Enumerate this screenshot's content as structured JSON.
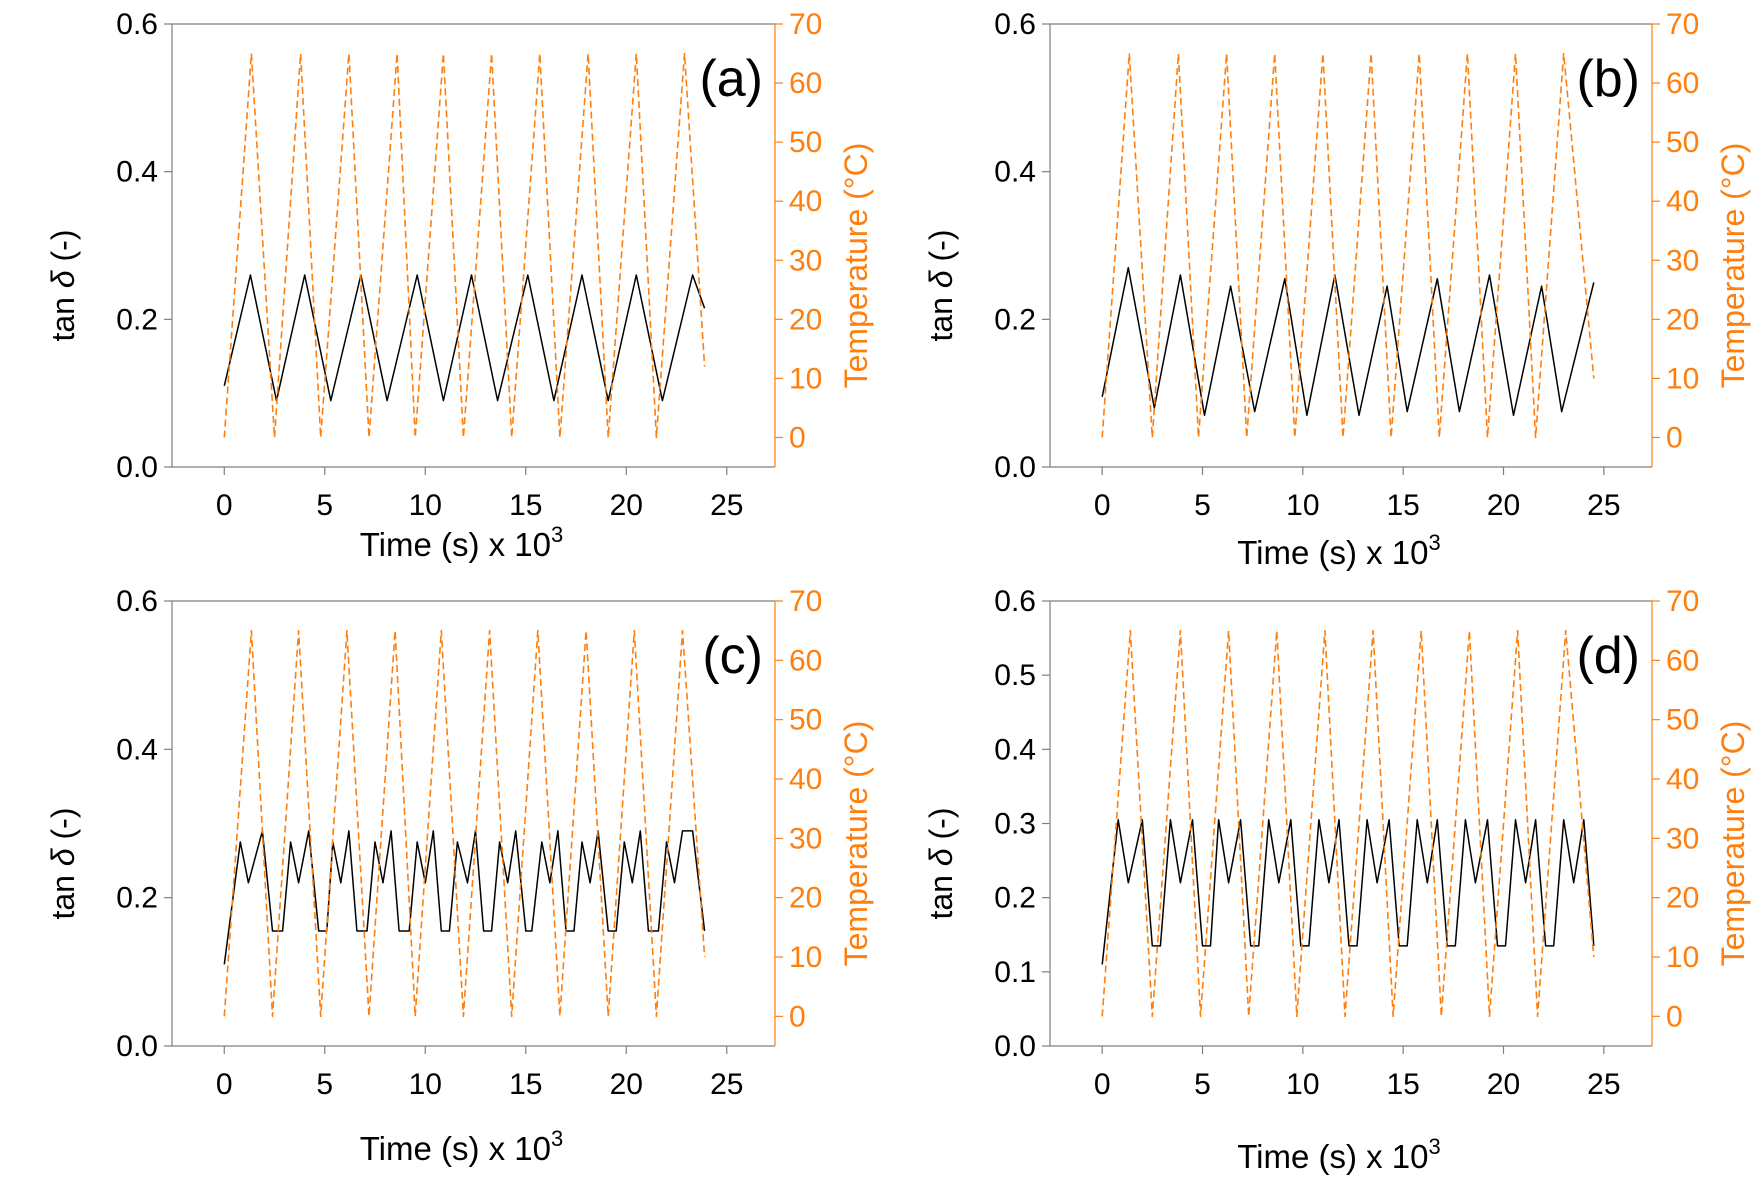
{
  "chart_data": [
    {
      "type": "line",
      "panel_label": "(a)",
      "xlabel": "Time (s) x 10",
      "xlabel_exponent": "3",
      "ylabel_prefix": "tan ",
      "ylabel_symbol": "δ",
      "ylabel_suffix": " (-)",
      "y2label": "Temperature (°C)",
      "xlim": [
        -2.6,
        27.4
      ],
      "ylim": [
        0,
        0.6
      ],
      "y2lim": [
        -5,
        70
      ],
      "xticks": [
        "0",
        "5",
        "10",
        "15",
        "20",
        "25"
      ],
      "xtick_values": [
        0,
        5,
        10,
        15,
        20,
        25
      ],
      "yticks": [
        "0.0",
        "0.2",
        "0.4",
        "0.6"
      ],
      "ytick_values": [
        0.0,
        0.2,
        0.4,
        0.6
      ],
      "y2ticks": [
        "0",
        "10",
        "20",
        "30",
        "40",
        "50",
        "60",
        "70"
      ],
      "y2tick_values": [
        0,
        10,
        20,
        30,
        40,
        50,
        60,
        70
      ],
      "series": [
        {
          "name": "tan δ",
          "axis": "left",
          "style": "solid",
          "color": "#000000",
          "x": [
            0,
            1.3,
            2.6,
            4.0,
            5.3,
            6.8,
            8.1,
            9.6,
            10.9,
            12.3,
            13.6,
            15.1,
            16.4,
            17.8,
            19.1,
            20.5,
            21.8,
            23.3,
            23.9
          ],
          "y": [
            0.11,
            0.26,
            0.09,
            0.26,
            0.09,
            0.26,
            0.09,
            0.26,
            0.09,
            0.26,
            0.09,
            0.26,
            0.09,
            0.26,
            0.09,
            0.26,
            0.09,
            0.26,
            0.215
          ]
        },
        {
          "name": "Temperature",
          "axis": "right",
          "style": "dashed",
          "color": "#ff7f0e",
          "x": [
            0,
            1.35,
            2.5,
            3.8,
            4.8,
            6.2,
            7.2,
            8.6,
            9.5,
            10.9,
            11.9,
            13.3,
            14.3,
            15.7,
            16.7,
            18.1,
            19.1,
            20.5,
            21.5,
            22.9,
            23.9
          ],
          "y": [
            0,
            65,
            0,
            65,
            0,
            65,
            0,
            65,
            0,
            65,
            0,
            65,
            0,
            65,
            0,
            65,
            0,
            65,
            0,
            65,
            12
          ]
        }
      ]
    },
    {
      "type": "line",
      "panel_label": "(b)",
      "xlabel": "Time (s) x 10",
      "xlabel_exponent": "3",
      "ylabel_prefix": "tan ",
      "ylabel_symbol": "δ",
      "ylabel_suffix": " (-)",
      "y2label": "Temperature (°C)",
      "xlim": [
        -2.6,
        27.4
      ],
      "ylim": [
        0,
        0.6
      ],
      "y2lim": [
        -5,
        70
      ],
      "xticks": [
        "0",
        "5",
        "10",
        "15",
        "20",
        "25"
      ],
      "xtick_values": [
        0,
        5,
        10,
        15,
        20,
        25
      ],
      "yticks": [
        "0.0",
        "0.2",
        "0.4",
        "0.6"
      ],
      "ytick_values": [
        0.0,
        0.2,
        0.4,
        0.6
      ],
      "y2ticks": [
        "0",
        "10",
        "20",
        "30",
        "40",
        "50",
        "60",
        "70"
      ],
      "y2tick_values": [
        0,
        10,
        20,
        30,
        40,
        50,
        60,
        70
      ],
      "series": [
        {
          "name": "tan δ",
          "axis": "left",
          "style": "solid",
          "color": "#000000",
          "x": [
            0,
            1.3,
            2.6,
            3.9,
            5.1,
            6.4,
            7.6,
            9.1,
            10.2,
            11.6,
            12.8,
            14.2,
            15.2,
            16.7,
            17.8,
            19.3,
            20.5,
            21.9,
            22.9,
            24.5
          ],
          "y": [
            0.095,
            0.27,
            0.08,
            0.26,
            0.07,
            0.245,
            0.075,
            0.255,
            0.07,
            0.26,
            0.07,
            0.245,
            0.075,
            0.255,
            0.075,
            0.26,
            0.07,
            0.245,
            0.075,
            0.25
          ]
        },
        {
          "name": "Temperature",
          "axis": "right",
          "style": "dashed",
          "color": "#ff7f0e",
          "x": [
            0,
            1.35,
            2.5,
            3.8,
            4.8,
            6.2,
            7.2,
            8.6,
            9.6,
            11.0,
            12.0,
            13.4,
            14.4,
            15.8,
            16.8,
            18.2,
            19.2,
            20.6,
            21.6,
            23.0,
            24.5
          ],
          "y": [
            0,
            65,
            0,
            65,
            0,
            65,
            0,
            65,
            0,
            65,
            0,
            65,
            0,
            65,
            0,
            65,
            0,
            65,
            0,
            65,
            10
          ]
        }
      ]
    },
    {
      "type": "line",
      "panel_label": "(c)",
      "xlabel": "Time (s) x 10",
      "xlabel_exponent": "3",
      "ylabel_prefix": "tan ",
      "ylabel_symbol": "δ",
      "ylabel_suffix": " (-)",
      "y2label": "Temperature (°C)",
      "xlim": [
        -2.6,
        27.4
      ],
      "ylim": [
        0,
        0.6
      ],
      "y2lim": [
        -5,
        70
      ],
      "xticks": [
        "0",
        "5",
        "10",
        "15",
        "20",
        "25"
      ],
      "xtick_values": [
        0,
        5,
        10,
        15,
        20,
        25
      ],
      "yticks": [
        "0.0",
        "0.2",
        "0.4",
        "0.6"
      ],
      "ytick_values": [
        0.0,
        0.2,
        0.4,
        0.6
      ],
      "y2ticks": [
        "0",
        "10",
        "20",
        "30",
        "40",
        "50",
        "60",
        "70"
      ],
      "y2tick_values": [
        0,
        10,
        20,
        30,
        40,
        50,
        60,
        70
      ],
      "series": [
        {
          "name": "tan δ",
          "axis": "left",
          "style": "solid",
          "color": "#000000",
          "x": [
            0,
            0.8,
            1.2,
            1.9,
            2.4,
            2.9,
            3.3,
            3.7,
            4.2,
            4.7,
            5.1,
            5.4,
            5.8,
            6.2,
            6.6,
            7.1,
            7.5,
            7.9,
            8.3,
            8.7,
            9.2,
            9.6,
            10.0,
            10.4,
            10.8,
            11.2,
            11.6,
            12.1,
            12.5,
            12.9,
            13.3,
            13.7,
            14.1,
            14.5,
            15.0,
            15.3,
            15.8,
            16.2,
            16.6,
            17.0,
            17.4,
            17.8,
            18.2,
            18.6,
            19.1,
            19.5,
            19.9,
            20.3,
            20.7,
            21.1,
            21.6,
            22.0,
            22.4,
            22.8,
            23.3,
            23.9
          ],
          "y": [
            0.11,
            0.275,
            0.22,
            0.29,
            0.155,
            0.155,
            0.275,
            0.22,
            0.29,
            0.155,
            0.155,
            0.275,
            0.22,
            0.29,
            0.155,
            0.155,
            0.275,
            0.22,
            0.29,
            0.155,
            0.155,
            0.275,
            0.22,
            0.29,
            0.155,
            0.155,
            0.275,
            0.22,
            0.29,
            0.155,
            0.155,
            0.275,
            0.22,
            0.29,
            0.155,
            0.155,
            0.275,
            0.22,
            0.29,
            0.155,
            0.155,
            0.275,
            0.22,
            0.29,
            0.155,
            0.155,
            0.275,
            0.22,
            0.29,
            0.155,
            0.155,
            0.275,
            0.22,
            0.29,
            0.29,
            0.155
          ]
        },
        {
          "name": "Temperature",
          "axis": "right",
          "style": "dashed",
          "color": "#ff7f0e",
          "x": [
            0,
            1.35,
            2.4,
            3.7,
            4.8,
            6.1,
            7.2,
            8.5,
            9.5,
            10.8,
            11.9,
            13.2,
            14.3,
            15.6,
            16.7,
            18.0,
            19.1,
            20.4,
            21.5,
            22.8,
            23.9
          ],
          "y": [
            0,
            65,
            0,
            65,
            0,
            65,
            0,
            65,
            0,
            65,
            0,
            65,
            0,
            65,
            0,
            65,
            0,
            65,
            0,
            65,
            10
          ]
        }
      ]
    },
    {
      "type": "line",
      "panel_label": "(d)",
      "xlabel": "Time (s) x 10",
      "xlabel_exponent": "3",
      "ylabel_prefix": "tan ",
      "ylabel_symbol": "δ",
      "ylabel_suffix": " (-)",
      "y2label": "Temperature (°C)",
      "xlim": [
        -2.6,
        27.4
      ],
      "ylim": [
        0,
        0.6
      ],
      "y2lim": [
        -5,
        70
      ],
      "xticks": [
        "0",
        "5",
        "10",
        "15",
        "20",
        "25"
      ],
      "xtick_values": [
        0,
        5,
        10,
        15,
        20,
        25
      ],
      "yticks": [
        "0.0",
        "0.1",
        "0.2",
        "0.3",
        "0.4",
        "0.5",
        "0.6"
      ],
      "ytick_values": [
        0.0,
        0.1,
        0.2,
        0.3,
        0.4,
        0.5,
        0.6
      ],
      "y2ticks": [
        "0",
        "10",
        "20",
        "30",
        "40",
        "50",
        "60",
        "70"
      ],
      "y2tick_values": [
        0,
        10,
        20,
        30,
        40,
        50,
        60,
        70
      ],
      "series": [
        {
          "name": "tan δ",
          "axis": "left",
          "style": "solid",
          "color": "#000000",
          "x": [
            0,
            0.8,
            1.3,
            2.0,
            2.5,
            2.9,
            3.4,
            3.9,
            4.5,
            5.0,
            5.4,
            5.8,
            6.3,
            6.9,
            7.4,
            7.8,
            8.3,
            8.8,
            9.4,
            9.9,
            10.3,
            10.8,
            11.3,
            11.8,
            12.3,
            12.7,
            13.2,
            13.7,
            14.3,
            14.8,
            15.2,
            15.7,
            16.2,
            16.7,
            17.2,
            17.6,
            18.1,
            18.6,
            19.2,
            19.7,
            20.1,
            20.6,
            21.1,
            21.6,
            22.1,
            22.5,
            23.0,
            23.5,
            24.0,
            24.5
          ],
          "y": [
            0.11,
            0.305,
            0.22,
            0.305,
            0.135,
            0.135,
            0.305,
            0.22,
            0.305,
            0.135,
            0.135,
            0.305,
            0.22,
            0.305,
            0.135,
            0.135,
            0.305,
            0.22,
            0.305,
            0.135,
            0.135,
            0.305,
            0.22,
            0.305,
            0.135,
            0.135,
            0.305,
            0.22,
            0.305,
            0.135,
            0.135,
            0.305,
            0.22,
            0.305,
            0.135,
            0.135,
            0.305,
            0.22,
            0.305,
            0.135,
            0.135,
            0.305,
            0.22,
            0.305,
            0.135,
            0.135,
            0.305,
            0.22,
            0.305,
            0.135
          ]
        },
        {
          "name": "Temperature",
          "axis": "right",
          "style": "dashed",
          "color": "#ff7f0e",
          "x": [
            0,
            1.4,
            2.5,
            3.9,
            4.9,
            6.3,
            7.3,
            8.7,
            9.7,
            11.1,
            12.1,
            13.5,
            14.5,
            15.9,
            16.9,
            18.3,
            19.3,
            20.7,
            21.7,
            23.1,
            24.5
          ],
          "y": [
            0,
            65,
            0,
            65,
            0,
            65,
            0,
            65,
            0,
            65,
            0,
            65,
            0,
            65,
            0,
            65,
            0,
            65,
            0,
            65,
            10
          ]
        }
      ]
    }
  ],
  "colors": {
    "left_axis": "#000000",
    "right_axis": "#ff7f0e",
    "frame": "#7f7f7f"
  }
}
